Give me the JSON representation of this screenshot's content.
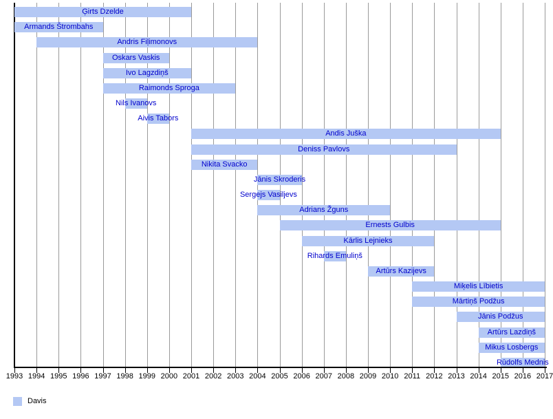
{
  "chart_data": {
    "type": "bar",
    "variant": "gantt-timeline",
    "title": "",
    "xlabel": "",
    "ylabel": "",
    "x_axis": {
      "min": 1993,
      "max": 2017,
      "tick_interval": 1,
      "tick_labels": [
        "1993",
        "1994",
        "1995",
        "1996",
        "1997",
        "1998",
        "1999",
        "2000",
        "2001",
        "2002",
        "2003",
        "2004",
        "2005",
        "2006",
        "2007",
        "2008",
        "2009",
        "2010",
        "2011",
        "2012",
        "2013",
        "2014",
        "2015",
        "2016",
        "2017"
      ]
    },
    "grid": true,
    "legend": {
      "position": "bottom-left",
      "entries": [
        {
          "label": "Davis",
          "color": "#b4c8f4"
        }
      ]
    },
    "bars": [
      {
        "name": "Ģirts Dzelde",
        "start": 1993,
        "end": 2001
      },
      {
        "name": "Armands Štrombahs",
        "start": 1993,
        "end": 1997
      },
      {
        "name": "Andris Fiļimonovs",
        "start": 1994,
        "end": 2004
      },
      {
        "name": "Oskars Vaskis",
        "start": 1997,
        "end": 2000
      },
      {
        "name": "Ivo Lagzdiņš",
        "start": 1997,
        "end": 2001
      },
      {
        "name": "Raimonds Sproga",
        "start": 1997,
        "end": 2003
      },
      {
        "name": "Nils Ivanovs",
        "start": 1998,
        "end": 1999
      },
      {
        "name": "Aivis Tabors",
        "start": 1999,
        "end": 2000
      },
      {
        "name": "Andis Juška",
        "start": 2001,
        "end": 2015
      },
      {
        "name": "Deniss Pavlovs",
        "start": 2001,
        "end": 2013
      },
      {
        "name": "Nikita Svacko",
        "start": 2001,
        "end": 2004
      },
      {
        "name": "Jānis Skroderis",
        "start": 2004,
        "end": 2006
      },
      {
        "name": "Sergejs Vasiljevs",
        "start": 2004,
        "end": 2005
      },
      {
        "name": "Adrians Žguns",
        "start": 2004,
        "end": 2010
      },
      {
        "name": "Ernests Gulbis",
        "start": 2005,
        "end": 2015
      },
      {
        "name": "Kārlis Lejnieks",
        "start": 2006,
        "end": 2012
      },
      {
        "name": "Rihards Emuliņš",
        "start": 2007,
        "end": 2008
      },
      {
        "name": "Artūrs Kazijevs",
        "start": 2009,
        "end": 2012
      },
      {
        "name": "Miķelis Lībietis",
        "start": 2011,
        "end": 2017
      },
      {
        "name": "Mārtiņš Podžus",
        "start": 2011,
        "end": 2017
      },
      {
        "name": "Jānis Podžus",
        "start": 2013,
        "end": 2017
      },
      {
        "name": "Artūrs Lazdiņš",
        "start": 2014,
        "end": 2017
      },
      {
        "name": "Mikus Losbergs",
        "start": 2014,
        "end": 2017
      },
      {
        "name": "Rūdolfs Mednis",
        "start": 2015,
        "end": 2017
      }
    ]
  },
  "colors": {
    "background": "#ffffff",
    "bar_fill": "#b4c8f4",
    "bar_label": "#0000cc",
    "gridline": "#999999",
    "axis": "#000000",
    "tick_label": "#000000"
  }
}
